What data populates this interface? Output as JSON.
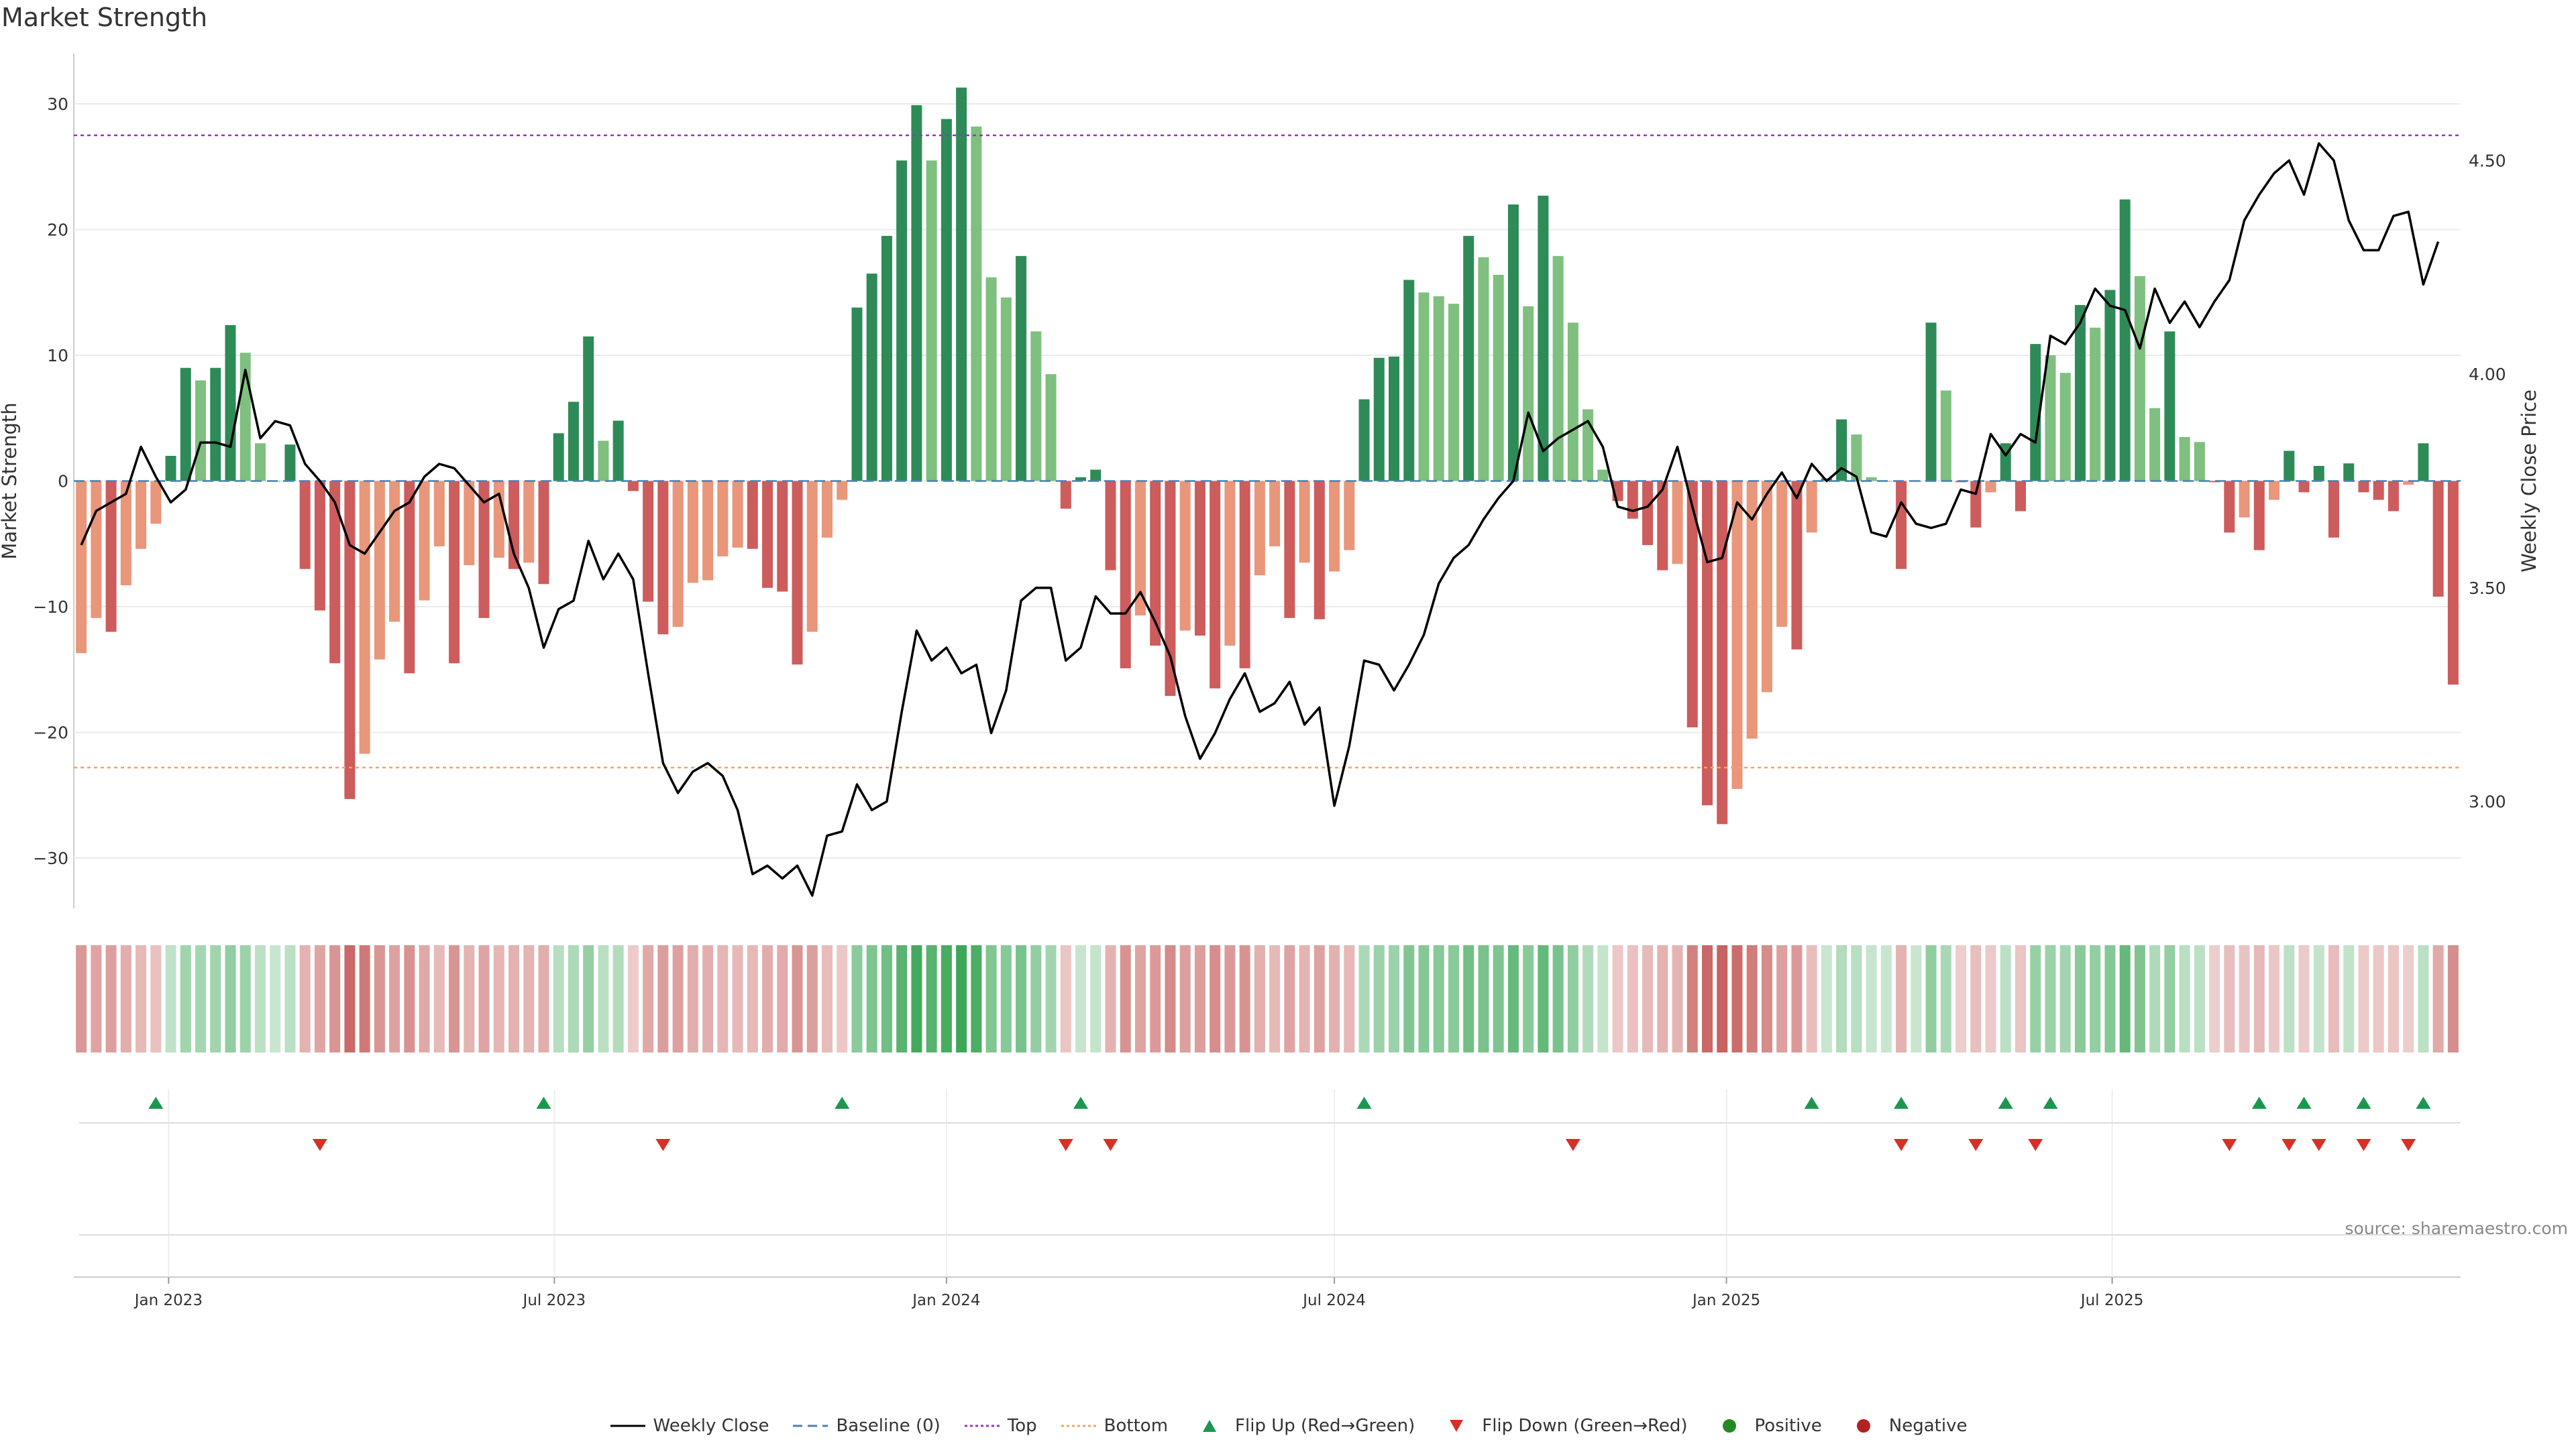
{
  "title": "Market Strength",
  "source_text": "source: sharemaestro.com",
  "colors": {
    "pos_dark": "#2e8b57",
    "pos_light": "#7fbf7f",
    "neg_dark": "#cd5c5c",
    "neg_light": "#e9967a",
    "line": "#000000",
    "baseline": "#4682b4",
    "top": "#9932cc",
    "bottom": "#f4a460",
    "flip_up": "#1a9850",
    "flip_down": "#d73027",
    "positive": "#228b22",
    "negative": "#b22222",
    "grid": "#ebebeb"
  },
  "chart_data": {
    "type": "bar",
    "start_date": "2022-11-21",
    "interval_days": 7,
    "ylabel": "Market Strength",
    "y2label": "Weekly Close Price",
    "ylim": [
      -34,
      34
    ],
    "y2lim": [
      2.75,
      4.75
    ],
    "yticks": [
      -30,
      -20,
      -10,
      0,
      10,
      20,
      30
    ],
    "y2ticks": [
      3.0,
      3.5,
      4.0,
      4.5
    ],
    "ytick_labels": [
      "−30",
      "−20",
      "−10",
      "0",
      "10",
      "20",
      "30"
    ],
    "y2tick_labels": [
      "3.00",
      "3.50",
      "4.00",
      "4.50"
    ],
    "xticks": [
      {
        "label": "Jan 2023",
        "date": "2023-01-01"
      },
      {
        "label": "Jul 2023",
        "date": "2023-07-01"
      },
      {
        "label": "Jan 2024",
        "date": "2024-01-01"
      },
      {
        "label": "Jul 2024",
        "date": "2024-07-01"
      },
      {
        "label": "Jan 2025",
        "date": "2025-01-01"
      },
      {
        "label": "Jul 2025",
        "date": "2025-07-01"
      }
    ],
    "top_level": 27.5,
    "bottom_level": -22.8,
    "strength": [
      -13.7,
      -10.9,
      -12,
      -8.3,
      -5.4,
      -3.4,
      2,
      9,
      8,
      9,
      12.4,
      10.2,
      3,
      0,
      2.9,
      -7,
      -10.3,
      -14.5,
      -25.3,
      -21.7,
      -14.2,
      -11.2,
      -15.3,
      -9.5,
      -5.2,
      -14.5,
      -6.7,
      -10.9,
      -6.1,
      -7,
      -6.5,
      -8.2,
      3.8,
      6.3,
      11.5,
      3.2,
      4.8,
      -0.8,
      -9.6,
      -12.2,
      -11.6,
      -8.1,
      -7.9,
      -6,
      -5.3,
      -5.4,
      -8.5,
      -8.8,
      -14.6,
      -12,
      -4.5,
      -1.5,
      13.8,
      16.5,
      19.5,
      25.5,
      29.9,
      25.5,
      28.8,
      31.3,
      28.2,
      16.2,
      14.6,
      17.9,
      11.9,
      8.5,
      -2.2,
      0.3,
      0.9,
      -7.1,
      -14.9,
      -10.7,
      -13.1,
      -17.1,
      -11.9,
      -12.3,
      -16.5,
      -13.1,
      -14.9,
      -7.5,
      -5.2,
      -10.9,
      -6.5,
      -11,
      -7.2,
      -5.5,
      6.5,
      9.8,
      9.9,
      16,
      15,
      14.7,
      14.1,
      19.5,
      17.8,
      16.4,
      22,
      13.9,
      22.7,
      17.9,
      12.6,
      5.7,
      0.9,
      -1.6,
      -3,
      -5.1,
      -7.1,
      -6.6,
      -19.6,
      -25.8,
      -27.3,
      -24.5,
      -20.5,
      -16.8,
      -11.6,
      -13.4,
      -4.1,
      0.2,
      4.9,
      3.7,
      0.3,
      0,
      -7,
      0,
      12.6,
      7.2,
      -0.1,
      -3.7,
      -0.9,
      3,
      -2.4,
      10.9,
      10,
      8.6,
      14,
      12.2,
      15.2,
      22.4,
      16.3,
      5.8,
      11.9,
      3.5,
      3.1,
      -0.1,
      -4.1,
      -2.9,
      -5.5,
      -1.5,
      2.4,
      -0.9,
      1.2,
      -4.5,
      1.4,
      -0.9,
      -1.5,
      -2.4,
      -0.3,
      3,
      -9.2,
      -16.2
    ],
    "close": [
      3.6,
      3.68,
      3.7,
      3.72,
      3.83,
      3.76,
      3.7,
      3.73,
      3.84,
      3.84,
      3.83,
      4.01,
      3.85,
      3.89,
      3.88,
      3.79,
      3.75,
      3.7,
      3.6,
      3.58,
      3.63,
      3.68,
      3.7,
      3.76,
      3.79,
      3.78,
      3.74,
      3.7,
      3.72,
      3.58,
      3.5,
      3.36,
      3.45,
      3.47,
      3.61,
      3.52,
      3.58,
      3.52,
      3.3,
      3.09,
      3.02,
      3.07,
      3.09,
      3.06,
      2.98,
      2.83,
      2.85,
      2.82,
      2.85,
      2.78,
      2.92,
      2.93,
      3.04,
      2.98,
      3.0,
      3.21,
      3.4,
      3.33,
      3.36,
      3.3,
      3.32,
      3.16,
      3.26,
      3.47,
      3.5,
      3.5,
      3.33,
      3.36,
      3.48,
      3.44,
      3.44,
      3.49,
      3.42,
      3.34,
      3.2,
      3.1,
      3.16,
      3.24,
      3.3,
      3.21,
      3.23,
      3.28,
      3.18,
      3.22,
      2.99,
      3.13,
      3.33,
      3.32,
      3.26,
      3.32,
      3.39,
      3.51,
      3.57,
      3.6,
      3.66,
      3.71,
      3.75,
      3.91,
      3.82,
      3.85,
      3.87,
      3.89,
      3.83,
      3.69,
      3.68,
      3.69,
      3.73,
      3.83,
      3.69,
      3.56,
      3.57,
      3.7,
      3.66,
      3.72,
      3.77,
      3.71,
      3.79,
      3.75,
      3.78,
      3.76,
      3.63,
      3.62,
      3.7,
      3.65,
      3.64,
      3.65,
      3.73,
      3.72,
      3.86,
      3.81,
      3.86,
      3.84,
      4.09,
      4.07,
      4.12,
      4.2,
      4.16,
      4.15,
      4.06,
      4.2,
      4.12,
      4.17,
      4.11,
      4.17,
      4.22,
      4.36,
      4.42,
      4.47,
      4.5,
      4.42,
      4.54,
      4.5,
      4.36,
      4.29,
      4.29,
      4.37,
      4.38,
      4.21,
      4.31
    ],
    "flip_up_dates": [
      "2022-12-26",
      "2023-06-26",
      "2023-11-13",
      "2024-03-04",
      "2024-07-15",
      "2025-02-10",
      "2025-03-24",
      "2025-05-12",
      "2025-06-02",
      "2025-09-08",
      "2025-09-29",
      "2025-10-27",
      "2025-11-24"
    ],
    "flip_down_dates": [
      "2023-03-13",
      "2023-08-21",
      "2024-02-26",
      "2024-03-18",
      "2024-10-21",
      "2025-03-24",
      "2025-04-28",
      "2025-05-26",
      "2025-08-25",
      "2025-09-22",
      "2025-10-06",
      "2025-10-27",
      "2025-11-17"
    ]
  },
  "legend": [
    {
      "label": "Weekly Close",
      "symbol": "line"
    },
    {
      "label": "Baseline (0)",
      "symbol": "dash"
    },
    {
      "label": "Top",
      "symbol": "dot-purple"
    },
    {
      "label": "Bottom",
      "symbol": "dot-orange"
    },
    {
      "label": "Flip Up (Red→Green)",
      "symbol": "tri-up"
    },
    {
      "label": "Flip Down (Green→Red)",
      "symbol": "tri-down"
    },
    {
      "label": "Positive",
      "symbol": "dot-green"
    },
    {
      "label": "Negative",
      "symbol": "dot-red"
    }
  ]
}
